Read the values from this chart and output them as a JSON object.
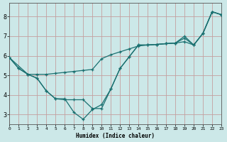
{
  "xlabel": "Humidex (Indice chaleur)",
  "bg_color": "#cce8e8",
  "grid_color_h": "#c8a0a0",
  "grid_color_v": "#c8a0a0",
  "line_color": "#1a7070",
  "xlim": [
    0,
    23
  ],
  "ylim": [
    2.5,
    8.7
  ],
  "yticks": [
    3,
    4,
    5,
    6,
    7,
    8
  ],
  "xticks": [
    0,
    1,
    2,
    3,
    4,
    5,
    6,
    7,
    8,
    9,
    10,
    11,
    12,
    13,
    14,
    15,
    16,
    17,
    18,
    19,
    20,
    21,
    22,
    23
  ],
  "line1_x": [
    0,
    1,
    2,
    3,
    4,
    5,
    6,
    7,
    8,
    9,
    10,
    11,
    12,
    13,
    14,
    15,
    16,
    17,
    18,
    19,
    20,
    21,
    22,
    23
  ],
  "line1_y": [
    5.9,
    5.35,
    5.05,
    5.05,
    5.05,
    5.1,
    5.15,
    5.2,
    5.25,
    5.3,
    5.85,
    6.05,
    6.2,
    6.35,
    6.5,
    6.55,
    6.58,
    6.62,
    6.65,
    6.72,
    6.55,
    7.15,
    8.25,
    8.1
  ],
  "line2_x": [
    0,
    2,
    3,
    4,
    5,
    6,
    7,
    8,
    9,
    10,
    11,
    12,
    13,
    14,
    15,
    16,
    17,
    18,
    19,
    20,
    21,
    22,
    23
  ],
  "line2_y": [
    5.9,
    5.05,
    4.85,
    4.2,
    3.8,
    3.75,
    3.75,
    3.75,
    3.3,
    3.3,
    4.3,
    5.35,
    5.95,
    6.55,
    6.55,
    6.58,
    6.62,
    6.65,
    7.0,
    6.55,
    7.15,
    8.25,
    8.1
  ],
  "line3_x": [
    0,
    1,
    2,
    3,
    4,
    5,
    6,
    7,
    8,
    9,
    10,
    11,
    12,
    13,
    14,
    15,
    16,
    17,
    18,
    19,
    20,
    21,
    22,
    23
  ],
  "line3_y": [
    5.9,
    5.35,
    5.05,
    4.85,
    4.2,
    3.8,
    3.8,
    3.1,
    2.75,
    3.25,
    3.5,
    4.3,
    5.35,
    5.95,
    6.55,
    6.55,
    6.58,
    6.62,
    6.65,
    6.9,
    6.55,
    7.15,
    8.25,
    8.1
  ]
}
